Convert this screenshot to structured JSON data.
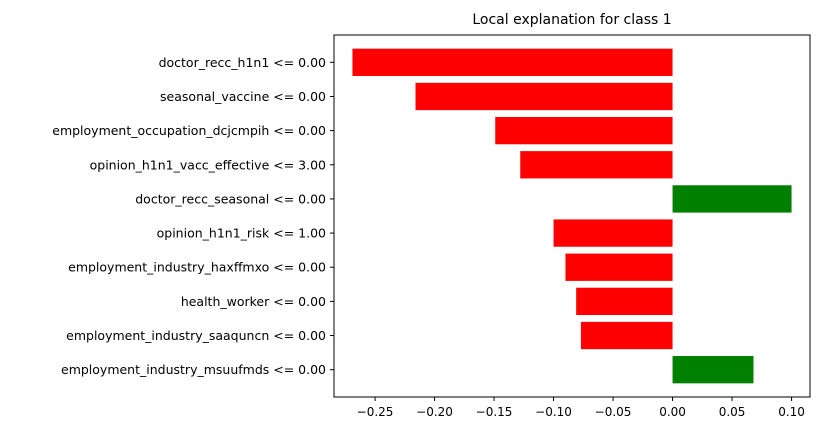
{
  "chart_data": {
    "type": "bar",
    "orientation": "horizontal",
    "title": "Local explanation for class 1",
    "categories": [
      "doctor_recc_h1n1 <= 0.00",
      "seasonal_vaccine <= 0.00",
      "employment_occupation_dcjcmpih <= 0.00",
      "opinion_h1n1_vacc_effective <= 3.00",
      "doctor_recc_seasonal <= 0.00",
      "opinion_h1n1_risk <= 1.00",
      "employment_industry_haxffmxo <= 0.00",
      "health_worker <= 0.00",
      "employment_industry_saaquncn <= 0.00",
      "employment_industry_msuufmds <= 0.00"
    ],
    "values": [
      -0.269,
      -0.216,
      -0.149,
      -0.128,
      0.1,
      -0.1,
      -0.09,
      -0.081,
      -0.077,
      0.068
    ],
    "xlim": [
      -0.2845,
      0.1155
    ],
    "xticks": [
      -0.25,
      -0.2,
      -0.15,
      -0.1,
      -0.05,
      0.0,
      0.05,
      0.1
    ],
    "xtick_labels": [
      "−0.25",
      "−0.20",
      "−0.15",
      "−0.10",
      "−0.05",
      "0.00",
      "0.05",
      "0.10"
    ],
    "colors": {
      "positive": "#008000",
      "negative": "#ff0000"
    },
    "grid": false,
    "xlabel": "",
    "ylabel": ""
  }
}
